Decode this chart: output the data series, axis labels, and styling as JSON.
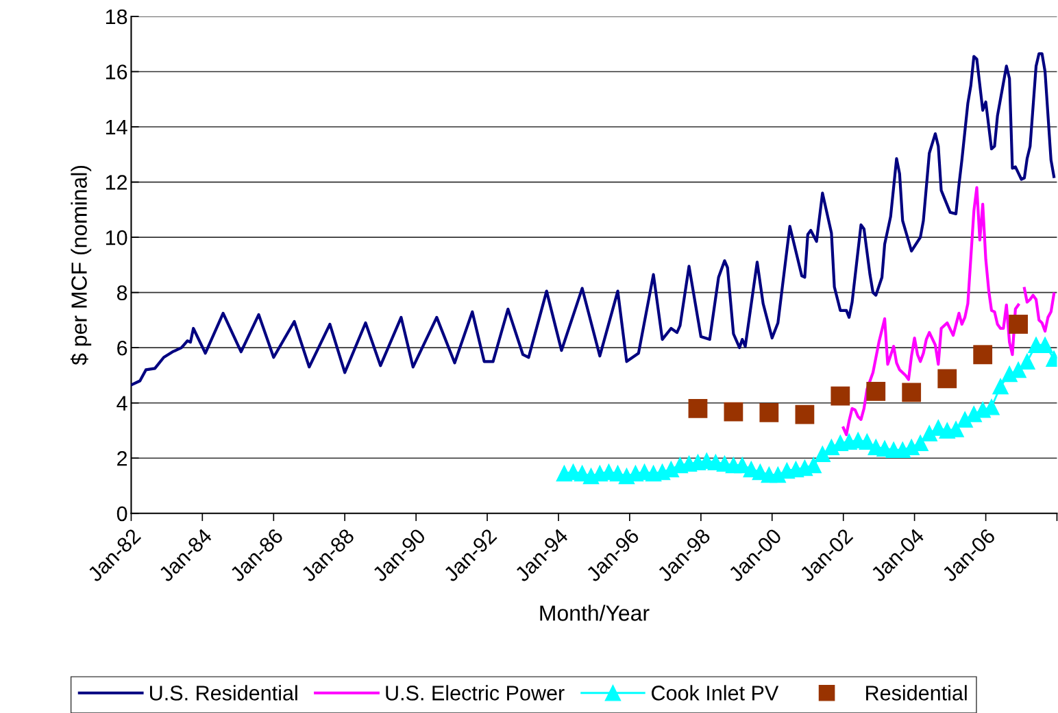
{
  "chart_data": {
    "type": "line",
    "xlabel": "Month/Year",
    "ylabel": "$ per MCF (nominal)",
    "ylim": [
      0,
      18
    ],
    "yticks": [
      0,
      2,
      4,
      6,
      8,
      10,
      12,
      14,
      16,
      18
    ],
    "xlim": [
      "1982-01",
      "2008-01"
    ],
    "xticks": [
      {
        "value": "1982-01",
        "label": "Jan-82"
      },
      {
        "value": "1984-01",
        "label": "Jan-84"
      },
      {
        "value": "1986-01",
        "label": "Jan-86"
      },
      {
        "value": "1988-01",
        "label": "Jan-88"
      },
      {
        "value": "1990-01",
        "label": "Jan-90"
      },
      {
        "value": "1992-01",
        "label": "Jan-92"
      },
      {
        "value": "1994-01",
        "label": "Jan-94"
      },
      {
        "value": "1996-01",
        "label": "Jan-96"
      },
      {
        "value": "1998-01",
        "label": "Jan-98"
      },
      {
        "value": "2000-01",
        "label": "Jan-00"
      },
      {
        "value": "2002-01",
        "label": "Jan-02"
      },
      {
        "value": "2004-01",
        "label": "Jan-04"
      },
      {
        "value": "2006-01",
        "label": "Jan-06"
      },
      {
        "value": "2008-01",
        "label": null
      }
    ],
    "grid": "y",
    "legend": "bottom",
    "series": [
      {
        "name": "U.S. Residential",
        "color": "#000080",
        "marker": "none",
        "x": [
          "1982-01",
          "1982-04",
          "1982-06",
          "1982-09",
          "1982-12",
          "1983-03",
          "1983-06",
          "1983-08",
          "1983-09",
          "1983-10",
          "1984-02",
          "1984-08",
          "1985-02",
          "1985-08",
          "1986-01",
          "1986-08",
          "1987-01",
          "1987-08",
          "1988-01",
          "1988-08",
          "1989-01",
          "1989-08",
          "1989-12",
          "1990-08",
          "1991-02",
          "1991-08",
          "1991-12",
          "1992-03",
          "1992-08",
          "1993-01",
          "1993-03",
          "1993-09",
          "1994-02",
          "1994-09",
          "1995-03",
          "1995-09",
          "1995-12",
          "1996-04",
          "1996-09",
          "1996-12",
          "1997-03",
          "1997-05",
          "1997-06",
          "1997-09",
          "1998-01",
          "1998-04",
          "1998-07",
          "1998-09",
          "1998-10",
          "1998-12",
          "1999-02",
          "1999-03",
          "1999-04",
          "1999-08",
          "1999-10",
          "2000-01",
          "2000-03",
          "2000-07",
          "2000-11",
          "2000-12",
          "2001-01",
          "2001-02",
          "2001-04",
          "2001-06",
          "2001-09",
          "2001-10",
          "2001-12",
          "2002-02",
          "2002-03",
          "2002-04",
          "2002-07",
          "2002-08",
          "2002-10",
          "2002-11",
          "2002-12",
          "2003-02",
          "2003-03",
          "2003-05",
          "2003-07",
          "2003-08",
          "2003-09",
          "2003-12",
          "2004-03",
          "2004-04",
          "2004-06",
          "2004-08",
          "2004-09",
          "2004-10",
          "2005-01",
          "2005-03",
          "2005-04",
          "2005-05",
          "2005-07",
          "2005-08",
          "2005-09",
          "2005-10",
          "2005-12",
          "2006-01",
          "2006-03",
          "2006-04",
          "2006-05",
          "2006-08",
          "2006-09",
          "2006-10",
          "2006-11",
          "2007-01",
          "2007-02",
          "2007-03",
          "2007-04",
          "2007-06",
          "2007-07",
          "2007-08",
          "2007-09",
          "2007-11",
          "2007-12"
        ],
        "values": [
          4.65,
          4.8,
          5.2,
          5.25,
          5.65,
          5.85,
          6.0,
          6.25,
          6.2,
          6.7,
          5.8,
          7.25,
          5.85,
          7.2,
          5.65,
          6.95,
          5.3,
          6.85,
          5.1,
          6.9,
          5.35,
          7.1,
          5.3,
          7.1,
          5.45,
          7.3,
          5.5,
          5.5,
          7.4,
          5.75,
          5.65,
          8.05,
          5.9,
          8.15,
          5.7,
          8.05,
          5.5,
          5.8,
          8.65,
          6.3,
          6.7,
          6.55,
          6.8,
          8.95,
          6.4,
          6.3,
          8.55,
          9.15,
          8.9,
          6.5,
          6.0,
          6.3,
          6.05,
          9.1,
          7.6,
          6.35,
          6.9,
          10.4,
          8.6,
          8.55,
          10.1,
          10.25,
          9.85,
          11.6,
          10.15,
          8.2,
          7.35,
          7.35,
          7.1,
          7.65,
          10.45,
          10.3,
          8.65,
          8.0,
          7.9,
          8.55,
          9.75,
          10.75,
          12.85,
          12.3,
          10.6,
          9.5,
          10.0,
          10.6,
          13.05,
          13.75,
          13.3,
          11.7,
          10.9,
          10.85,
          11.9,
          12.8,
          14.85,
          15.5,
          16.55,
          16.45,
          14.6,
          14.9,
          13.2,
          13.3,
          14.4,
          16.2,
          15.75,
          12.5,
          12.55,
          12.1,
          12.15,
          12.85,
          13.3,
          16.2,
          16.65,
          16.65,
          16.0,
          12.8,
          12.2
        ]
      },
      {
        "name": "U.S. Electric Power",
        "color": "#ff00ff",
        "marker": "none",
        "x": [
          "2002-01",
          "2002-02",
          "2002-03",
          "2002-04",
          "2002-05",
          "2002-06",
          "2002-07",
          "2002-08",
          "2002-09",
          "2002-11",
          "2003-01",
          "2003-03",
          "2003-04",
          "2003-06",
          "2003-07",
          "2003-08",
          "2003-10",
          "2003-11",
          "2003-12",
          "2004-01",
          "2004-02",
          "2004-03",
          "2004-04",
          "2004-05",
          "2004-06",
          "2004-08",
          "2004-09",
          "2004-10",
          "2004-12",
          "2005-02",
          "2005-04",
          "2005-05",
          "2005-06",
          "2005-07",
          "2005-09",
          "2005-10",
          "2005-11",
          "2005-12",
          "2006-01",
          "2006-02",
          "2006-03",
          "2006-04",
          "2006-05",
          "2006-06",
          "2006-07",
          "2006-08",
          "2006-09",
          "2006-10",
          "2006-11",
          "2006-12",
          "2007-01",
          "2007-02",
          "2007-03",
          "2007-04",
          "2007-05",
          "2007-06",
          "2007-07",
          "2007-08",
          "2007-09",
          "2007-10",
          "2007-11",
          "2007-12"
        ],
        "values": [
          3.1,
          2.85,
          3.35,
          3.8,
          3.75,
          3.5,
          3.4,
          3.8,
          4.5,
          5.1,
          6.2,
          7.05,
          5.4,
          6.05,
          5.45,
          5.2,
          5.0,
          4.85,
          5.7,
          6.35,
          5.75,
          5.5,
          5.8,
          6.3,
          6.55,
          6.1,
          5.4,
          6.7,
          6.9,
          6.45,
          7.25,
          6.85,
          7.1,
          7.6,
          10.95,
          11.8,
          9.9,
          11.2,
          9.2,
          8.05,
          7.35,
          7.3,
          6.85,
          6.7,
          6.7,
          7.55,
          6.2,
          5.75,
          7.4,
          7.55,
          null,
          8.15,
          7.65,
          7.75,
          7.9,
          7.75,
          7.0,
          6.9,
          6.6,
          7.1,
          7.3,
          7.95
        ]
      },
      {
        "name": "Cook Inlet PV",
        "color": "#00ffff",
        "marker": "triangle",
        "x": [
          "1994-03",
          "1994-06",
          "1994-09",
          "1994-12",
          "1995-03",
          "1995-06",
          "1995-09",
          "1995-12",
          "1996-03",
          "1996-06",
          "1996-09",
          "1996-12",
          "1997-03",
          "1997-06",
          "1997-09",
          "1997-12",
          "1998-03",
          "1998-06",
          "1998-09",
          "1998-12",
          "1999-03",
          "1999-06",
          "1999-09",
          "1999-12",
          "2000-03",
          "2000-06",
          "2000-09",
          "2000-12",
          "2001-03",
          "2001-06",
          "2001-09",
          "2001-12",
          "2002-03",
          "2002-06",
          "2002-09",
          "2002-12",
          "2003-03",
          "2003-06",
          "2003-09",
          "2003-12",
          "2004-03",
          "2004-06",
          "2004-09",
          "2004-12",
          "2005-03",
          "2005-06",
          "2005-09",
          "2005-12",
          "2006-03",
          "2006-06",
          "2006-09",
          "2006-12",
          "2007-03",
          "2007-06",
          "2007-09",
          "2007-12"
        ],
        "values": [
          1.45,
          1.5,
          1.45,
          1.35,
          1.45,
          1.5,
          1.45,
          1.35,
          1.45,
          1.5,
          1.45,
          1.5,
          1.6,
          1.75,
          1.8,
          1.85,
          1.9,
          1.85,
          1.8,
          1.75,
          1.75,
          1.6,
          1.5,
          1.4,
          1.4,
          1.55,
          1.6,
          1.65,
          1.75,
          2.15,
          2.4,
          2.55,
          2.6,
          2.65,
          2.6,
          2.4,
          2.35,
          2.3,
          2.3,
          2.4,
          2.55,
          2.9,
          3.1,
          3.0,
          3.05,
          3.4,
          3.6,
          3.75,
          3.85,
          4.6,
          5.05,
          5.2,
          5.5,
          6.1,
          6.1,
          5.6
        ]
      },
      {
        "name": "Residential",
        "color": "#993300",
        "type": "scatter",
        "marker": "square",
        "x": [
          "1997-12",
          "1998-12",
          "1999-12",
          "2000-12",
          "2001-12",
          "2002-12",
          "2003-12",
          "2004-12",
          "2005-12",
          "2006-12"
        ],
        "values": [
          3.8,
          3.68,
          3.65,
          3.58,
          4.25,
          4.42,
          4.38,
          4.88,
          5.75,
          6.85
        ]
      }
    ]
  }
}
